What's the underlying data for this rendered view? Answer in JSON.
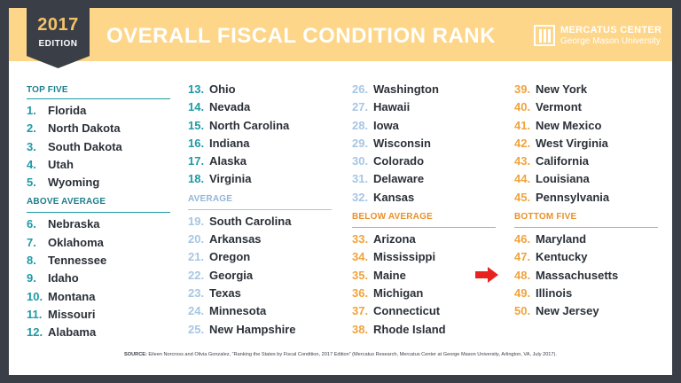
{
  "badge": {
    "year": "2017",
    "edition": "EDITION"
  },
  "title": "OVERALL FISCAL CONDITION RANK",
  "logo": {
    "line1": "MERCATUS CENTER",
    "line2": "George Mason University"
  },
  "colors": {
    "banner": "#fdd68a",
    "teal": "#1e9aa6",
    "light_blue": "#a6c6e4",
    "orange": "#f0a33c",
    "arrow": "#e8231f"
  },
  "sections": {
    "top_five": "TOP FIVE",
    "above_average": "ABOVE AVERAGE",
    "average": "AVERAGE",
    "below_average": "BELOW AVERAGE",
    "bottom_five": "BOTTOM FIVE"
  },
  "ranks": [
    {
      "n": "1.",
      "state": "Florida"
    },
    {
      "n": "2.",
      "state": "North Dakota"
    },
    {
      "n": "3.",
      "state": "South Dakota"
    },
    {
      "n": "4.",
      "state": "Utah"
    },
    {
      "n": "5.",
      "state": "Wyoming"
    },
    {
      "n": "6.",
      "state": "Nebraska"
    },
    {
      "n": "7.",
      "state": "Oklahoma"
    },
    {
      "n": "8.",
      "state": "Tennessee"
    },
    {
      "n": "9.",
      "state": "Idaho"
    },
    {
      "n": "10.",
      "state": "Montana"
    },
    {
      "n": "11.",
      "state": "Missouri"
    },
    {
      "n": "12.",
      "state": "Alabama"
    },
    {
      "n": "13.",
      "state": "Ohio"
    },
    {
      "n": "14.",
      "state": "Nevada"
    },
    {
      "n": "15.",
      "state": "North Carolina"
    },
    {
      "n": "16.",
      "state": "Indiana"
    },
    {
      "n": "17.",
      "state": "Alaska"
    },
    {
      "n": "18.",
      "state": "Virginia"
    },
    {
      "n": "19.",
      "state": "South Carolina"
    },
    {
      "n": "20.",
      "state": "Arkansas"
    },
    {
      "n": "21.",
      "state": "Oregon"
    },
    {
      "n": "22.",
      "state": "Georgia"
    },
    {
      "n": "23.",
      "state": "Texas"
    },
    {
      "n": "24.",
      "state": "Minnesota"
    },
    {
      "n": "25.",
      "state": "New Hampshire"
    },
    {
      "n": "26.",
      "state": "Washington"
    },
    {
      "n": "27.",
      "state": "Hawaii"
    },
    {
      "n": "28.",
      "state": "Iowa"
    },
    {
      "n": "29.",
      "state": "Wisconsin"
    },
    {
      "n": "30.",
      "state": "Colorado"
    },
    {
      "n": "31.",
      "state": "Delaware"
    },
    {
      "n": "32.",
      "state": "Kansas"
    },
    {
      "n": "33.",
      "state": "Arizona"
    },
    {
      "n": "34.",
      "state": "Mississippi"
    },
    {
      "n": "35.",
      "state": "Maine"
    },
    {
      "n": "36.",
      "state": "Michigan"
    },
    {
      "n": "37.",
      "state": "Connecticut"
    },
    {
      "n": "38.",
      "state": "Rhode Island"
    },
    {
      "n": "39.",
      "state": "New York"
    },
    {
      "n": "40.",
      "state": "Vermont"
    },
    {
      "n": "41.",
      "state": "New Mexico"
    },
    {
      "n": "42.",
      "state": "West Virginia"
    },
    {
      "n": "43.",
      "state": "California"
    },
    {
      "n": "44.",
      "state": "Louisiana"
    },
    {
      "n": "45.",
      "state": "Pennsylvania"
    },
    {
      "n": "46.",
      "state": "Maryland"
    },
    {
      "n": "47.",
      "state": "Kentucky"
    },
    {
      "n": "48.",
      "state": "Massachusetts"
    },
    {
      "n": "49.",
      "state": "Illinois"
    },
    {
      "n": "50.",
      "state": "New Jersey"
    }
  ],
  "highlight_icon": "red-arrow-icon",
  "source": {
    "label": "SOURCE:",
    "text": "Eileen Norcross and Olivia Gonzalez, “Ranking the States by Fiscal Condition, 2017 Edition” (Mercatus Research, Mercatus Center at George Mason University, Arlington, VA, July 2017)."
  }
}
